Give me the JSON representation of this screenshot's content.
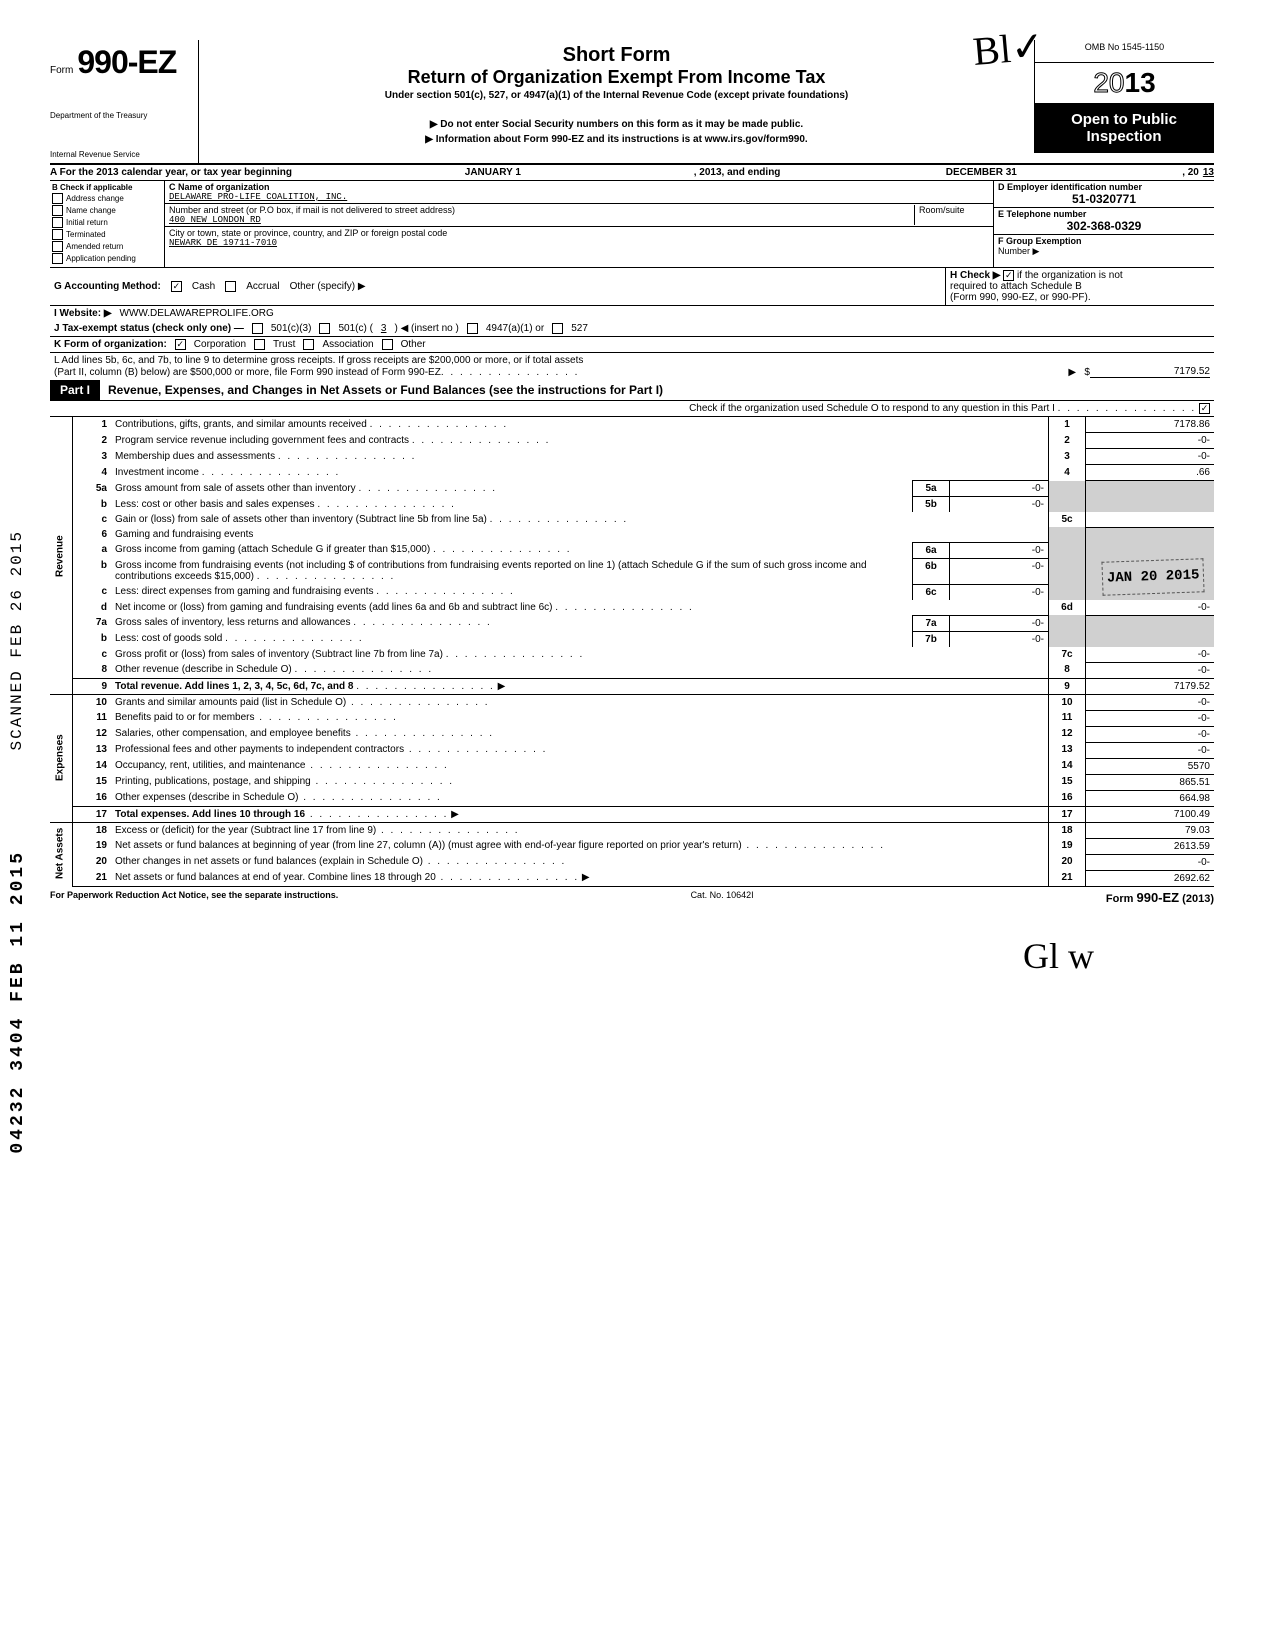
{
  "omb": "OMB No  1545-1150",
  "form_prefix": "Form",
  "form_number": "990-EZ",
  "year": "2013",
  "year_prefix_outline": "20",
  "year_suffix_bold": "13",
  "title_short": "Short Form",
  "title_return": "Return of Organization Exempt From Income Tax",
  "under_section": "Under section 501(c), 527, or 4947(a)(1) of the Internal Revenue Code (except private foundations)",
  "do_not_enter": "Do not enter Social Security numbers on this form as it may be made public.",
  "dept1": "Department of the Treasury",
  "dept2": "Internal Revenue Service",
  "info_about": "Information about Form 990-EZ and its instructions is at www.irs.gov/form990.",
  "open_public1": "Open to Public",
  "open_public2": "Inspection",
  "handwritten_top": "Bl✓",
  "row_a": {
    "label": "A  For the 2013 calendar year, or tax year beginning",
    "begin": "JANUARY 1",
    "mid": ", 2013, and ending",
    "end": "DECEMBER 31",
    "year_label": ", 20",
    "year_val": "13"
  },
  "col_b": {
    "header": "B  Check if applicable",
    "items": [
      "Address change",
      "Name change",
      "Initial return",
      "Terminated",
      "Amended return",
      "Application pending"
    ]
  },
  "col_c": {
    "name_label": "C  Name of organization",
    "name_val": "DELAWARE PRO-LIFE COALITION, INC.",
    "street_label": "Number and street (or P.O  box, if mail is not delivered to street address)",
    "room_label": "Room/suite",
    "street_val": "400 NEW LONDON RD",
    "city_label": "City or town, state or province, country, and ZIP or foreign postal code",
    "city_val": "NEWARK  DE 19711-7010"
  },
  "col_d": {
    "ein_label": "D Employer identification number",
    "ein_val": "51-0320771",
    "tel_label": "E Telephone number",
    "tel_val": "302-368-0329",
    "group_label": "F  Group Exemption",
    "group_label2": "Number ▶"
  },
  "row_g": {
    "label": "G  Accounting Method:",
    "cash": "Cash",
    "accrual": "Accrual",
    "other": "Other (specify) ▶"
  },
  "row_h": {
    "label": "H  Check ▶",
    "text": "if the organization is not",
    "text2": "required to attach Schedule B",
    "text3": "(Form 990, 990-EZ, or 990-PF)."
  },
  "row_i": {
    "label": "I   Website: ▶",
    "val": "WWW.DELAWAREPROLIFE.ORG"
  },
  "row_j": {
    "label": "J  Tax-exempt status (check only one) —",
    "c3": "501(c)(3)",
    "c": "501(c) (",
    "c_num": "3",
    "c_after": ") ◀ (insert no )",
    "a1": "4947(a)(1) or",
    "s527": "527"
  },
  "row_k": {
    "label": "K  Form of organization:",
    "corp": "Corporation",
    "trust": "Trust",
    "assoc": "Association",
    "other": "Other"
  },
  "row_l": {
    "text1": "L  Add lines 5b, 6c, and 7b, to line 9 to determine gross receipts. If gross receipts are $200,000 or more, or if total assets",
    "text2": "(Part II, column (B) below) are $500,000 or more, file Form 990 instead of Form 990-EZ",
    "val": "7179.52"
  },
  "part1": {
    "label": "Part I",
    "title": "Revenue, Expenses, and Changes in Net Assets or Fund Balances (see the instructions for Part I)",
    "check_o": "Check if the organization used Schedule O to respond to any question in this Part I"
  },
  "side_labels": {
    "revenue": "Revenue",
    "expenses": "Expenses",
    "netassets": "Net Assets"
  },
  "lines": {
    "l1": {
      "n": "1",
      "d": "Contributions, gifts, grants, and similar amounts received",
      "rn": "1",
      "rv": "7178.86"
    },
    "l2": {
      "n": "2",
      "d": "Program service revenue including government fees and contracts",
      "rn": "2",
      "rv": "-0-"
    },
    "l3": {
      "n": "3",
      "d": "Membership dues and assessments",
      "rn": "3",
      "rv": "-0-"
    },
    "l4": {
      "n": "4",
      "d": "Investment income",
      "rn": "4",
      "rv": ".66"
    },
    "l5a": {
      "n": "5a",
      "d": "Gross amount from sale of assets other than inventory",
      "bn": "5a",
      "bv": "-0-"
    },
    "l5b": {
      "n": "b",
      "d": "Less: cost or other basis and sales expenses",
      "bn": "5b",
      "bv": "-0-"
    },
    "l5c": {
      "n": "c",
      "d": "Gain or (loss) from sale of assets other than inventory (Subtract line 5b from line 5a)",
      "rn": "5c",
      "rv": ""
    },
    "l6": {
      "n": "6",
      "d": "Gaming and fundraising events"
    },
    "l6a": {
      "n": "a",
      "d": "Gross income from gaming (attach Schedule G if greater than $15,000)",
      "bn": "6a",
      "bv": "-0-"
    },
    "l6b": {
      "n": "b",
      "d": "Gross income from fundraising events (not including  $",
      "d2": "of contributions from fundraising events reported on line 1) (attach Schedule G if the sum of such gross income and contributions exceeds $15,000)",
      "bn": "6b",
      "bv": "-0-"
    },
    "l6c": {
      "n": "c",
      "d": "Less: direct expenses from gaming and fundraising events",
      "bn": "6c",
      "bv": "-0-"
    },
    "l6d": {
      "n": "d",
      "d": "Net income or (loss) from gaming and fundraising events (add lines 6a and 6b and subtract line 6c)",
      "rn": "6d",
      "rv": "-0-"
    },
    "l7a": {
      "n": "7a",
      "d": "Gross sales of inventory, less returns and allowances",
      "bn": "7a",
      "bv": "-0-"
    },
    "l7b": {
      "n": "b",
      "d": "Less: cost of goods sold",
      "bn": "7b",
      "bv": "-0-"
    },
    "l7c": {
      "n": "c",
      "d": "Gross profit or (loss) from sales of inventory (Subtract line 7b from line 7a)",
      "rn": "7c",
      "rv": "-0-"
    },
    "l8": {
      "n": "8",
      "d": "Other revenue (describe in Schedule O)",
      "rn": "8",
      "rv": "-0-"
    },
    "l9": {
      "n": "9",
      "d": "Total revenue. Add lines 1, 2, 3, 4, 5c, 6d, 7c, and 8",
      "rn": "9",
      "rv": "7179.52"
    },
    "l10": {
      "n": "10",
      "d": "Grants and similar amounts paid (list in Schedule O)",
      "rn": "10",
      "rv": "-0-"
    },
    "l11": {
      "n": "11",
      "d": "Benefits paid to or for members",
      "rn": "11",
      "rv": "-0-"
    },
    "l12": {
      "n": "12",
      "d": "Salaries, other compensation, and employee benefits",
      "rn": "12",
      "rv": "-0-"
    },
    "l13": {
      "n": "13",
      "d": "Professional fees and other payments to independent contractors",
      "rn": "13",
      "rv": "-0-"
    },
    "l14": {
      "n": "14",
      "d": "Occupancy, rent, utilities, and maintenance",
      "rn": "14",
      "rv": "5570"
    },
    "l15": {
      "n": "15",
      "d": "Printing, publications, postage, and shipping",
      "rn": "15",
      "rv": "865.51"
    },
    "l16": {
      "n": "16",
      "d": "Other expenses (describe in Schedule O)",
      "rn": "16",
      "rv": "664.98"
    },
    "l17": {
      "n": "17",
      "d": "Total expenses. Add lines 10 through 16",
      "rn": "17",
      "rv": "7100.49"
    },
    "l18": {
      "n": "18",
      "d": "Excess or (deficit) for the year (Subtract line 17 from line 9)",
      "rn": "18",
      "rv": "79.03"
    },
    "l19": {
      "n": "19",
      "d": "Net assets or fund balances at beginning of year (from line 27, column (A)) (must agree with end-of-year figure reported on prior year's return)",
      "rn": "19",
      "rv": "2613.59"
    },
    "l20": {
      "n": "20",
      "d": "Other changes in net assets or fund balances (explain in Schedule O)",
      "rn": "20",
      "rv": "-0-"
    },
    "l21": {
      "n": "21",
      "d": "Net assets or fund balances at end of year. Combine lines 18 through 20",
      "rn": "21",
      "rv": "2692.62"
    }
  },
  "footer": {
    "left": "For Paperwork Reduction Act Notice, see the separate instructions.",
    "center": "Cat. No. 10642I",
    "right": "Form 990-EZ (2013)"
  },
  "stamps": {
    "scanned": "SCANNED FEB 26 2015",
    "dln": "04232 3404 FEB 11 2015",
    "received": "JAN 20 2015"
  },
  "signature_bottom": "Gl w"
}
